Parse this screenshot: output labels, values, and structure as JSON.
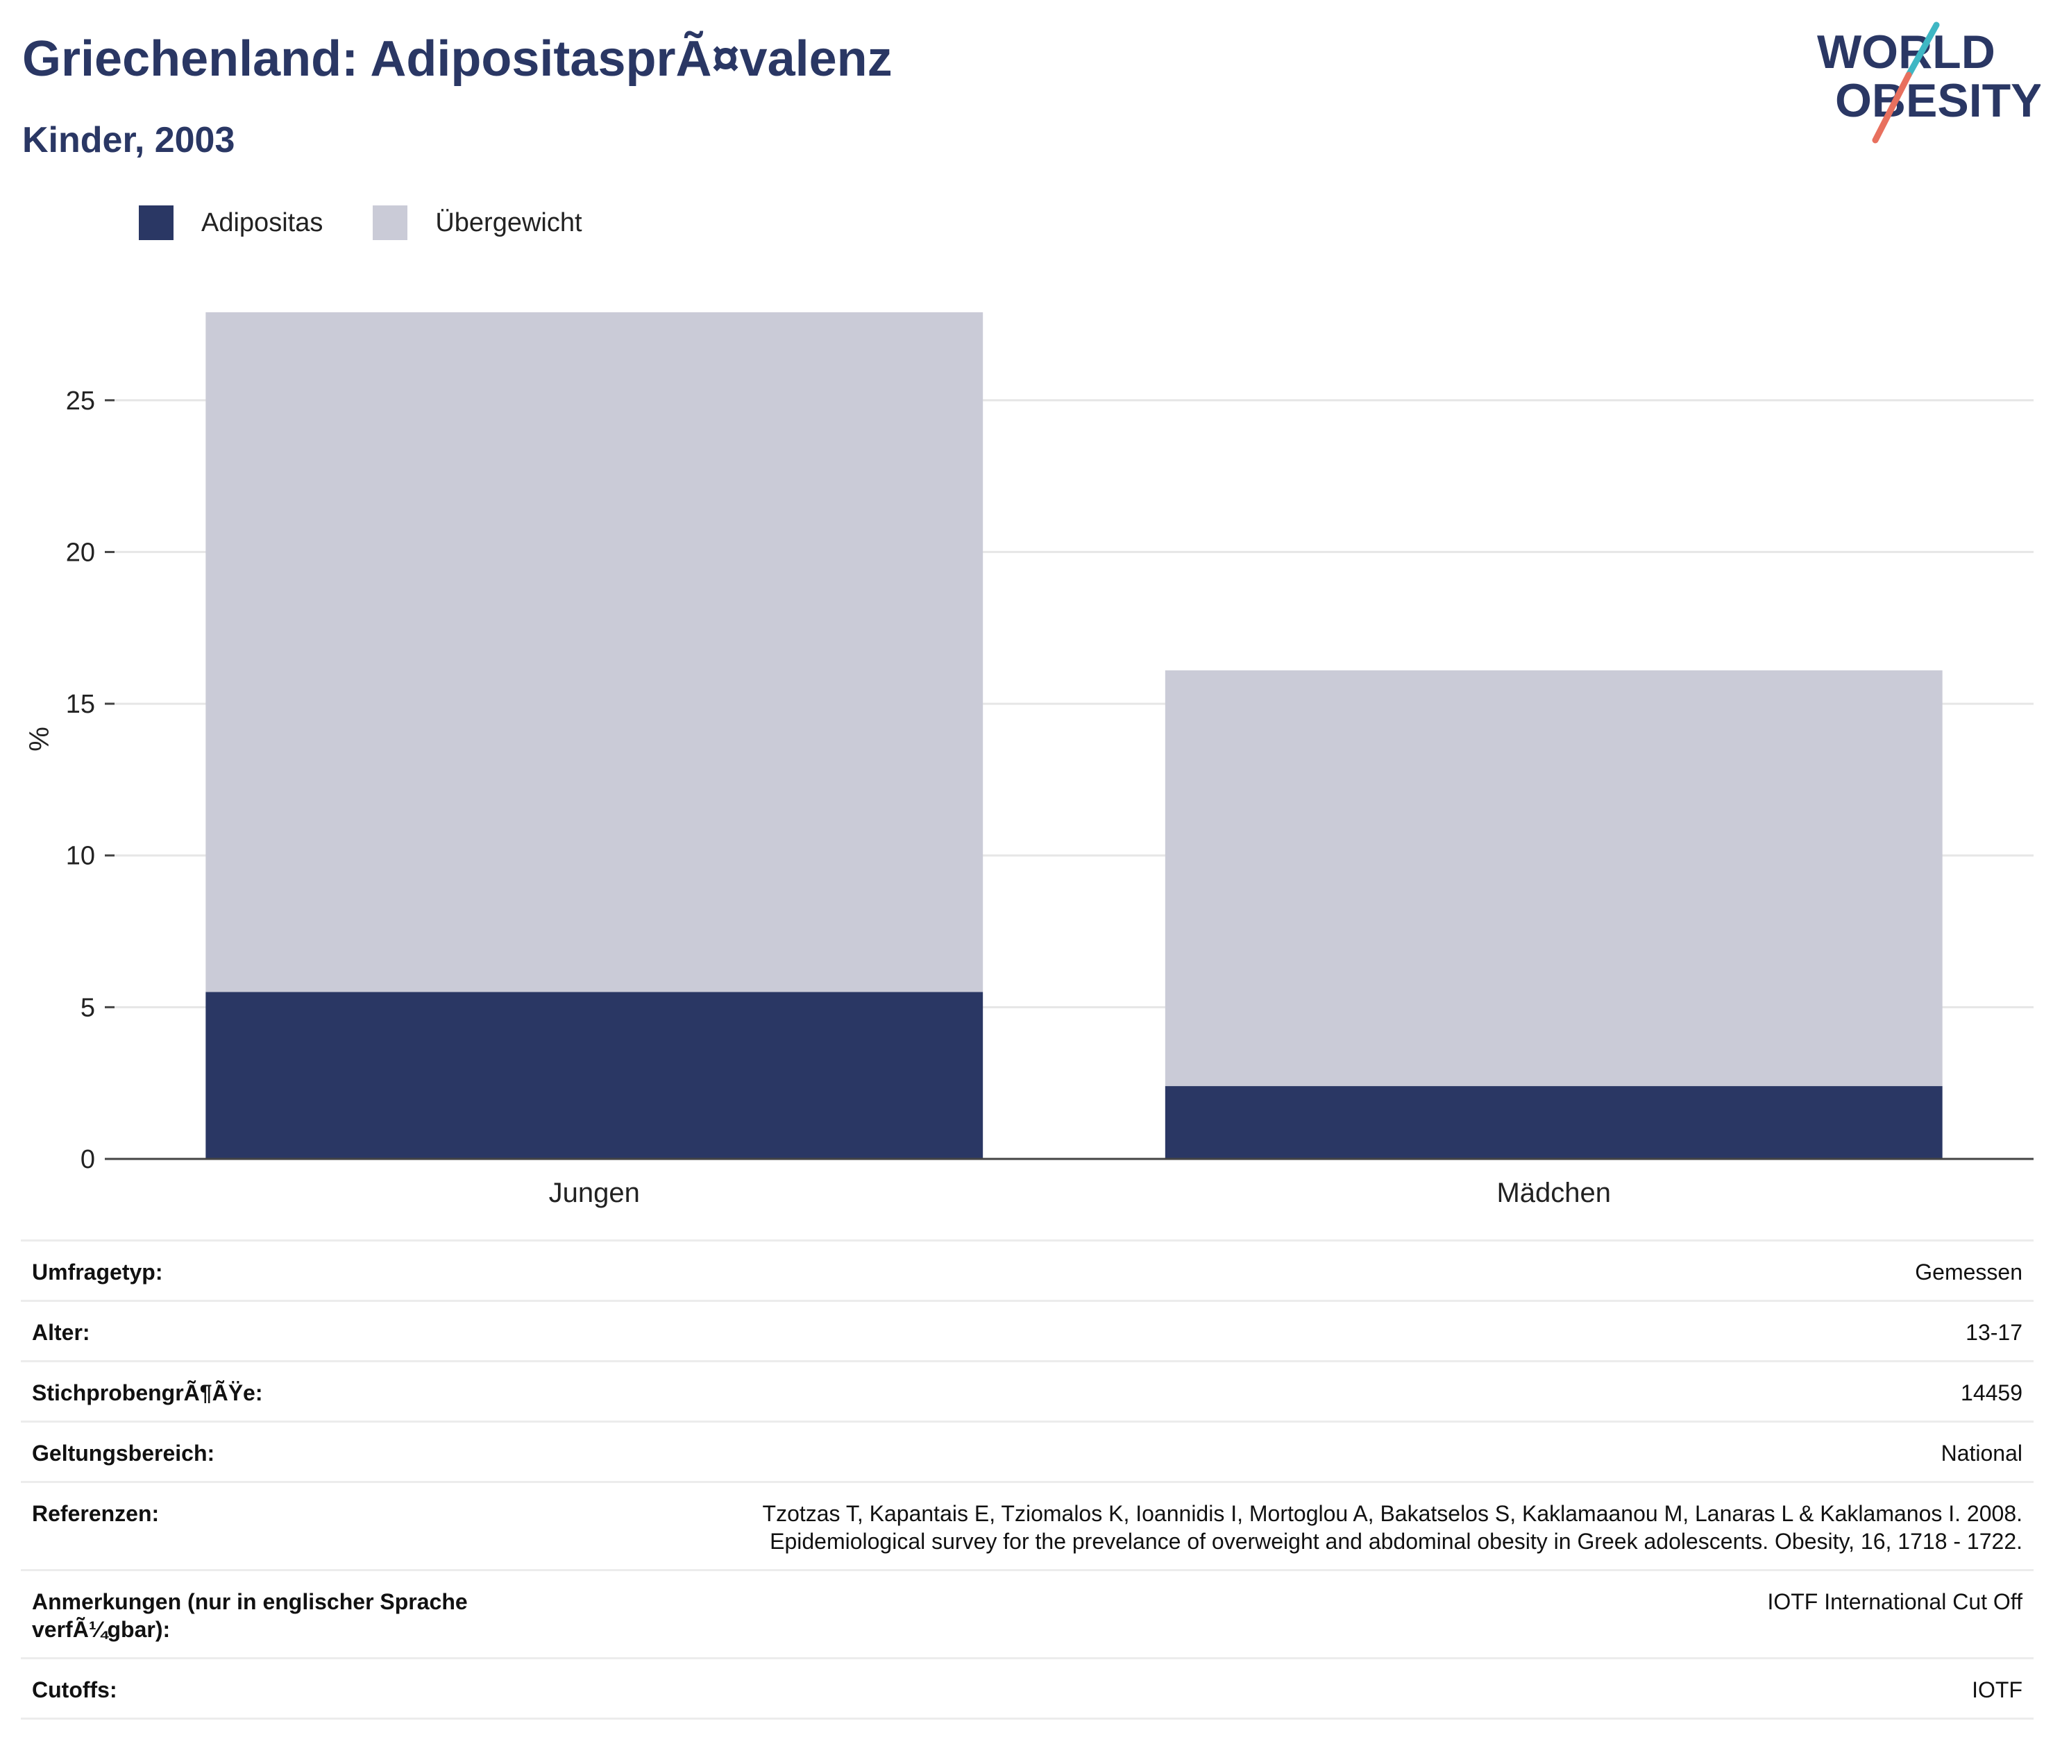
{
  "header": {
    "title": "Griechenland: AdipositasprÃ¤valenz",
    "subtitle": "Kinder, 2003"
  },
  "logo": {
    "line1": "WORLD",
    "line2": "OBESITY"
  },
  "colors": {
    "obesity": "#2a3764",
    "overweight": "#cacbd7",
    "title": "#2a3764",
    "logo_teal": "#3fb7c4",
    "logo_coral": "#e8705e"
  },
  "chart_data": {
    "type": "bar",
    "stacked": true,
    "categories": [
      "Jungen",
      "Mädchen"
    ],
    "series": [
      {
        "name": "Adipositas",
        "values": [
          5.5,
          2.4
        ]
      },
      {
        "name": "Übergewicht",
        "values": [
          22.4,
          13.7
        ]
      }
    ],
    "ylabel": "%",
    "ylim": [
      0,
      29.5
    ],
    "yticks": [
      0,
      5,
      10,
      15,
      20,
      25
    ],
    "grid": true,
    "legend": "top-left"
  },
  "details": [
    {
      "key": "Umfragetyp:",
      "value": "Gemessen"
    },
    {
      "key": "Alter:",
      "value": "13-17"
    },
    {
      "key": "StichprobengrÃ¶ÃŸe:",
      "value": "14459"
    },
    {
      "key": "Geltungsbereich:",
      "value": "National"
    },
    {
      "key": "Referenzen:",
      "value_lines": [
        "Tzotzas T, Kapantais E, Tziomalos K, Ioannidis I, Mortoglou A, Bakatselos S, Kaklamaanou M, Lanaras L & Kaklamanos I. 2008.",
        "Epidemiological survey for the prevelance of overweight and abdominal obesity in Greek adolescents. Obesity, 16, 1718 - 1722."
      ]
    },
    {
      "key_lines": [
        "Anmerkungen (nur in englischer Sprache",
        "verfÃ¼gbar):"
      ],
      "value": "IOTF International Cut Off"
    },
    {
      "key": "Cutoffs:",
      "value": "IOTF"
    }
  ]
}
